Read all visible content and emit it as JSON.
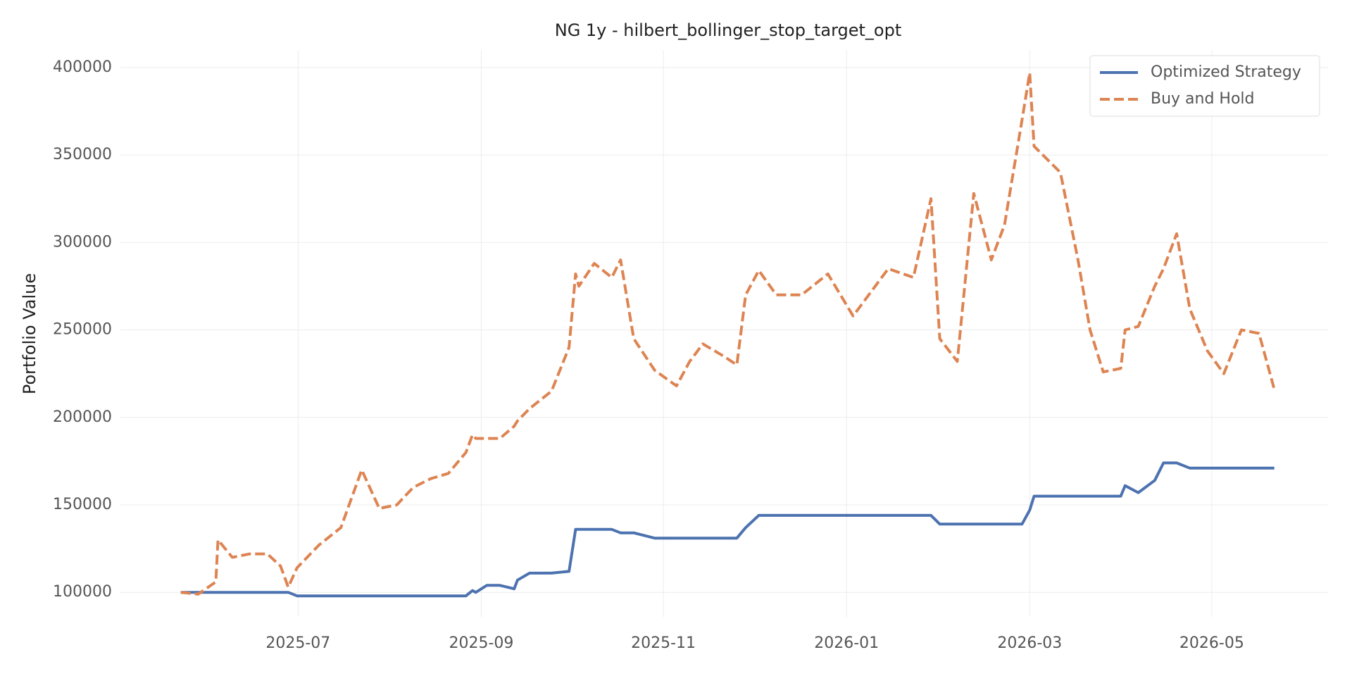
{
  "chart_data": {
    "type": "line",
    "title": "NG 1y - hilbert_bollinger_stop_target_opt",
    "y_label": "Portfolio Value",
    "x": [
      2025.393,
      2025.409,
      2025.425,
      2025.427,
      2025.44,
      2025.456,
      2025.472,
      2025.484,
      2025.491,
      2025.499,
      2025.519,
      2025.539,
      2025.558,
      2025.574,
      2025.59,
      2025.605,
      2025.621,
      2025.637,
      2025.653,
      2025.659,
      2025.662,
      2025.672,
      2025.684,
      2025.697,
      2025.7,
      2025.711,
      2025.731,
      2025.747,
      2025.753,
      2025.756,
      2025.77,
      2025.786,
      2025.794,
      2025.806,
      2025.825,
      2025.845,
      2025.857,
      2025.869,
      2025.888,
      2025.9,
      2025.908,
      2025.92,
      2025.936,
      2025.959,
      2025.983,
      2026.006,
      2026.038,
      2026.061,
      2026.077,
      2026.085,
      2026.101,
      2026.116,
      2026.132,
      2026.144,
      2026.16,
      2026.167,
      2026.171,
      2026.195,
      2026.211,
      2026.222,
      2026.234,
      2026.25,
      2026.254,
      2026.266,
      2026.281,
      2026.289,
      2026.301,
      2026.313,
      2026.329,
      2026.344,
      2026.36,
      2026.376,
      2026.39
    ],
    "series": [
      {
        "name": "Optimized Strategy",
        "color": "#4c72b0",
        "linestyle": "solid",
        "values": [
          100000,
          100000,
          100000,
          100000,
          100000,
          100000,
          100000,
          100000,
          100000,
          98000,
          98000,
          98000,
          98000,
          98000,
          98000,
          98000,
          98000,
          98000,
          98000,
          101000,
          100000,
          104000,
          104000,
          102000,
          107000,
          111000,
          111000,
          112000,
          136000,
          136000,
          136000,
          136000,
          134000,
          134000,
          131000,
          131000,
          131000,
          131000,
          131000,
          131000,
          137000,
          144000,
          144000,
          144000,
          144000,
          144000,
          144000,
          144000,
          144000,
          139000,
          139000,
          139000,
          139000,
          139000,
          139000,
          147000,
          155000,
          155000,
          155000,
          155000,
          155000,
          155000,
          161000,
          157000,
          164000,
          174000,
          174000,
          171000,
          171000,
          171000,
          171000,
          171000,
          171000
        ]
      },
      {
        "name": "Buy and Hold",
        "color": "#dd8452",
        "linestyle": "dashed",
        "values": [
          100000,
          99000,
          106000,
          130000,
          120000,
          122000,
          122000,
          115000,
          103000,
          114000,
          127000,
          137000,
          170000,
          148000,
          150000,
          160000,
          165000,
          168000,
          180000,
          190000,
          188000,
          188000,
          188000,
          195000,
          198000,
          205000,
          215000,
          240000,
          282000,
          275000,
          288000,
          280000,
          290000,
          245000,
          227000,
          218000,
          232000,
          242000,
          235000,
          230000,
          270000,
          284000,
          270000,
          270000,
          282000,
          258000,
          285000,
          280000,
          325000,
          245000,
          232000,
          328000,
          290000,
          310000,
          370000,
          397000,
          355000,
          340000,
          290000,
          250000,
          226000,
          228000,
          250000,
          252000,
          275000,
          285000,
          305000,
          262000,
          238000,
          225000,
          250000,
          248000,
          216000
        ]
      }
    ],
    "xlim": [
      2025.338,
      2026.439
    ],
    "xticks": [
      {
        "value": 2025.5,
        "label": "2025-07"
      },
      {
        "value": 2025.667,
        "label": "2025-09"
      },
      {
        "value": 2025.833,
        "label": "2025-11"
      },
      {
        "value": 2026.0,
        "label": "2026-01"
      },
      {
        "value": 2026.167,
        "label": "2026-03"
      },
      {
        "value": 2026.333,
        "label": "2026-05"
      }
    ],
    "ylim": [
      86000,
      410000
    ],
    "yticks": [
      100000,
      150000,
      200000,
      250000,
      300000,
      350000,
      400000
    ],
    "grid": true,
    "legend": "upper right"
  }
}
